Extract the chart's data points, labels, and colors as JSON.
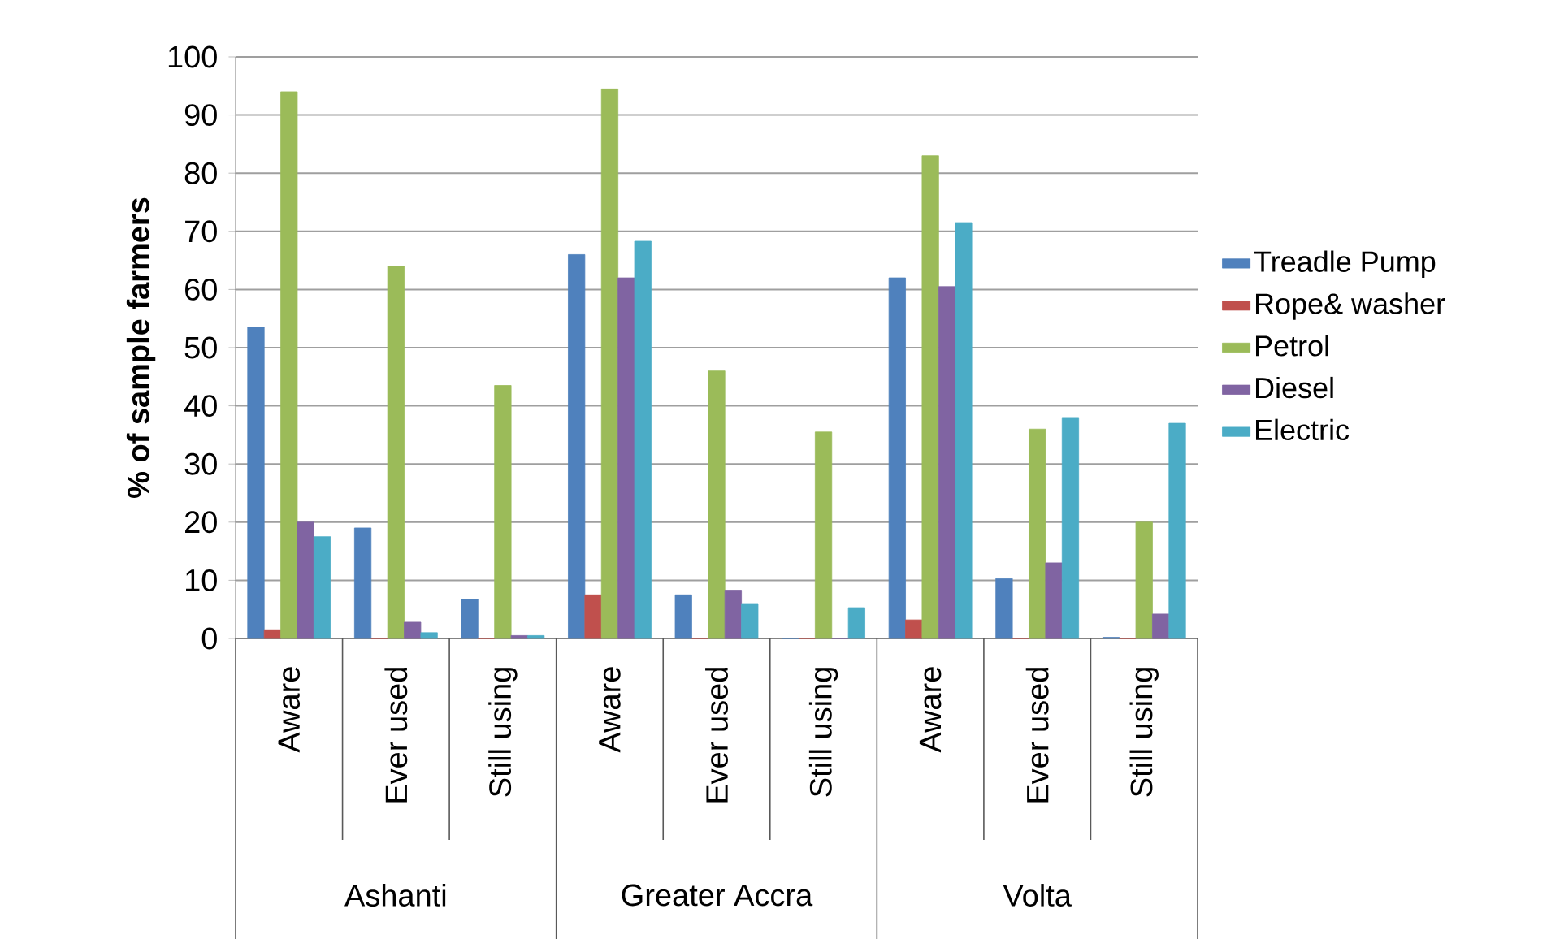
{
  "chart_data": {
    "type": "bar",
    "ylabel": "% of sample farmers",
    "categories": [
      "Aware",
      "Ever used",
      "Still using",
      "Aware",
      "Ever used",
      "Still using",
      "Aware",
      "Ever used",
      "Still using"
    ],
    "annotations": [
      "Ashanti",
      "Greater Accra",
      "Volta"
    ],
    "series": [
      {
        "name": "Treadle Pump",
        "color": "#4f81bd",
        "values": [
          53.5,
          19,
          6.7,
          66,
          7.5,
          0,
          62,
          10.3,
          0.2
        ]
      },
      {
        "name": "Rope& washer",
        "color": "#c0504d",
        "values": [
          1.5,
          0,
          0,
          7.5,
          0,
          0,
          3.2,
          0,
          0
        ]
      },
      {
        "name": "Petrol",
        "color": "#9bbb59",
        "values": [
          94,
          64,
          43.5,
          94.5,
          46,
          35.5,
          83,
          36,
          20
        ]
      },
      {
        "name": "Diesel",
        "color": "#8064a2",
        "values": [
          20,
          2.8,
          0.5,
          62,
          8.3,
          0,
          60.5,
          13,
          4.2
        ]
      },
      {
        "name": "Electric",
        "color": "#4bacc6",
        "values": [
          17.5,
          1,
          0.5,
          68.3,
          6,
          5.3,
          71.5,
          38,
          37
        ]
      }
    ],
    "ylim": [
      0,
      100
    ],
    "yticks": [
      0,
      10,
      20,
      30,
      40,
      50,
      60,
      70,
      80,
      90,
      100
    ],
    "grid": "y",
    "legend": "right"
  }
}
